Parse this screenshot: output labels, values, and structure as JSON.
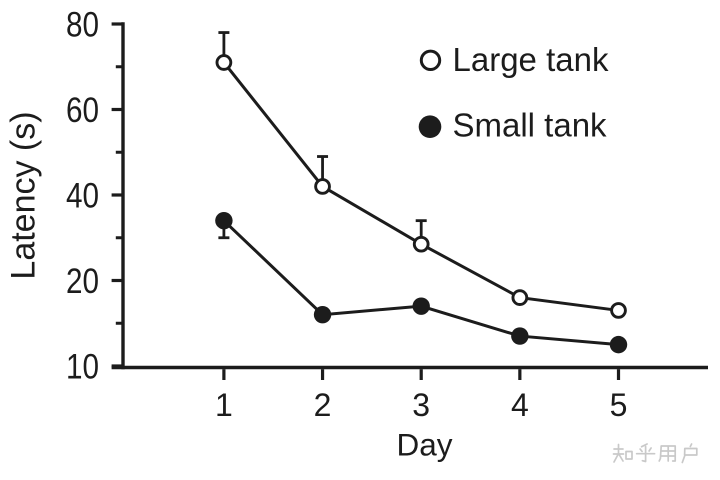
{
  "page": {
    "background": "#ffffff",
    "ink_color": "#1c1c1c"
  },
  "watermark": {
    "text": "知乎用户",
    "color": "#c9c9c9"
  },
  "chart_data": {
    "type": "line",
    "title": "",
    "xlabel": "Day",
    "ylabel": "Latency (s)",
    "x": [
      1,
      2,
      3,
      4,
      5
    ],
    "x_tick_labels": [
      "1",
      "2",
      "3",
      "4",
      "5"
    ],
    "y_tick_values": [
      80,
      60,
      40,
      20,
      10
    ],
    "y_tick_labels": [
      "80",
      "60",
      "40",
      "20",
      "10"
    ],
    "y_minor_tick_values": [
      70,
      50,
      30,
      15
    ],
    "y_axis_note": "nonlinear scale: labeled ticks 80, 60, 40, 20, 10 are evenly spaced",
    "ylim_top": 80,
    "ylim_bottom": 10,
    "grid": false,
    "legend_position": "upper-right-inside",
    "series": [
      {
        "name": "Large tank",
        "marker": "open-circle",
        "values": [
          71,
          42,
          28.5,
          18,
          16.5
        ],
        "err_up": [
          7,
          7,
          5.5,
          0,
          0
        ],
        "err_down": [
          0,
          0,
          0,
          0,
          0
        ]
      },
      {
        "name": "Small tank",
        "marker": "filled-circle",
        "values": [
          34,
          16,
          17,
          13.5,
          12.5
        ],
        "err_up": [
          0,
          0,
          0,
          0,
          0
        ],
        "err_down": [
          4,
          0,
          0,
          0,
          0
        ]
      }
    ]
  }
}
